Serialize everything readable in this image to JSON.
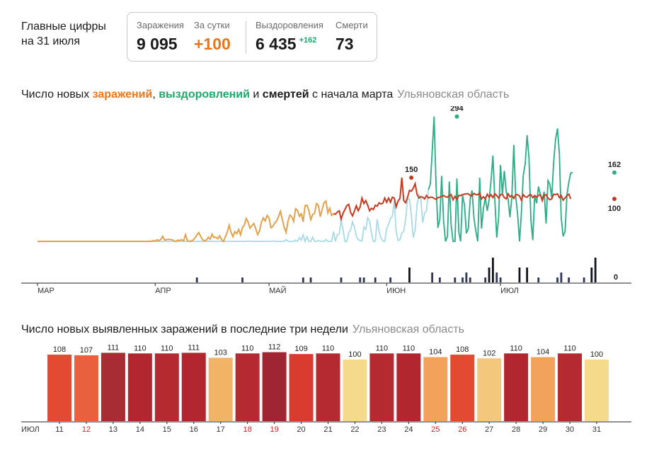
{
  "headline": {
    "line1": "Главные цифры",
    "line2": "на 31 июля"
  },
  "stats": {
    "infections": {
      "label": "Заражения",
      "value": "9 095"
    },
    "daily": {
      "label": "За сутки",
      "value": "+100"
    },
    "recovered": {
      "label": "Выздоровления",
      "value": "6 435",
      "delta": "+162"
    },
    "deaths": {
      "label": "Смерти",
      "value": "73"
    }
  },
  "colors": {
    "infections": "#c8391e",
    "infections_early": "#e2a14a",
    "recovered": "#2eae86",
    "recovered_light": "#a6dbe6",
    "deaths": "#2f3552",
    "deaths_peak": "#11131f"
  },
  "chart1": {
    "title_parts": {
      "t1": "Число новых ",
      "infections": "заражений",
      "t2": ", ",
      "recovered": "выздоровлений",
      "t3": " и ",
      "deaths": "смертей",
      "t4": " с начала марта"
    },
    "region": "Ульяновская область",
    "months": [
      "МАР",
      "АПР",
      "МАЙ",
      "ИЮН",
      "ИЮЛ"
    ],
    "labels": {
      "infections_peak": "150",
      "recovered_peak": "294",
      "recovered_last": "162",
      "infections_last": "100",
      "deaths_last": "0"
    }
  },
  "chart2": {
    "title": "Число новых выявленных заражений в последние три недели",
    "region": "Ульяновская область",
    "month_label": "ИЮЛ"
  },
  "chart_data": [
    {
      "type": "line",
      "title": "Число новых заражений, выздоровлений и смертей с начала марта",
      "x_range": [
        "01.03",
        "31.07"
      ],
      "series": [
        {
          "name": "заражения",
          "step": 2,
          "values": [
            0,
            0,
            0,
            0,
            0,
            0,
            0,
            0,
            0,
            0,
            0,
            0,
            0,
            0,
            0,
            0,
            0,
            0,
            0,
            0,
            0,
            0,
            0,
            0,
            0,
            0,
            0,
            0,
            0,
            0,
            0,
            0,
            0,
            0,
            0,
            0,
            0,
            0,
            0,
            0,
            0,
            0,
            0,
            0,
            0,
            0,
            0,
            0,
            0,
            0,
            0,
            0,
            0,
            0,
            0,
            0,
            0,
            0,
            0,
            0,
            0,
            2,
            0,
            4,
            1,
            5,
            12,
            3,
            4,
            5,
            4,
            4,
            1,
            0,
            3,
            2,
            4,
            1,
            16,
            2,
            0,
            1,
            3,
            8,
            15,
            21,
            11,
            4,
            1,
            3,
            10,
            5,
            17,
            9,
            10,
            6,
            13,
            4,
            0,
            11,
            22,
            38,
            21,
            11,
            23,
            18,
            28,
            15,
            33,
            38,
            54,
            45,
            31,
            37,
            42,
            30,
            16,
            25,
            45,
            55,
            48,
            61,
            55,
            32,
            35,
            43,
            48,
            58,
            71,
            52,
            33,
            21,
            48,
            62,
            58,
            47,
            77,
            73,
            59,
            65,
            46,
            84,
            85,
            72,
            51,
            63,
            66,
            89,
            85,
            58,
            75,
            91,
            95,
            67,
            78,
            61,
            65,
            64,
            69,
            72,
            52,
            66,
            75,
            84,
            87,
            68,
            60,
            71,
            84,
            72,
            81,
            102,
            89,
            96,
            85,
            72,
            78,
            75,
            85,
            83,
            91,
            88,
            90,
            102,
            92,
            102,
            92,
            104,
            102,
            81,
            95,
            101,
            150,
            96,
            91,
            104,
            120,
            118,
            125,
            136,
            111,
            102,
            105,
            104,
            100,
            108,
            102,
            104,
            104,
            101,
            99,
            103,
            104,
            106,
            108,
            105,
            104,
            108,
            110,
            98,
            106,
            99,
            108,
            108,
            110,
            111,
            112,
            112,
            108,
            107,
            113,
            110,
            110,
            114,
            100,
            105,
            100,
            111,
            104,
            110,
            103,
            112,
            108,
            102,
            110,
            111,
            103,
            100,
            112,
            105,
            108,
            101,
            110,
            110,
            107,
            97,
            110,
            105,
            104,
            109,
            110,
            103,
            108,
            104,
            108,
            110,
            96,
            108,
            110,
            102,
            98,
            100,
            111,
            110,
            112,
            103,
            108,
            97,
            102,
            108,
            111,
            100
          ]
        },
        {
          "name": "выздоровления",
          "step": 2,
          "values": [
            0,
            0,
            0,
            0,
            0,
            0,
            0,
            0,
            0,
            0,
            0,
            0,
            0,
            0,
            0,
            0,
            0,
            0,
            0,
            0,
            0,
            0,
            0,
            0,
            0,
            0,
            0,
            0,
            0,
            0,
            0,
            0,
            0,
            0,
            0,
            0,
            0,
            0,
            0,
            0,
            0,
            0,
            0,
            0,
            0,
            0,
            0,
            0,
            0,
            0,
            0,
            0,
            0,
            0,
            0,
            0,
            0,
            0,
            0,
            0,
            0,
            0,
            0,
            0,
            0,
            0,
            0,
            0,
            0,
            0,
            0,
            0,
            0,
            0,
            0,
            0,
            0,
            0,
            0,
            0,
            0,
            0,
            0,
            0,
            0,
            0,
            0,
            0,
            0,
            0,
            0,
            0,
            0,
            0,
            0,
            0,
            0,
            0,
            0,
            0,
            0,
            0,
            0,
            0,
            0,
            0,
            0,
            0,
            0,
            0,
            0,
            1,
            0,
            0,
            0,
            0,
            0,
            0,
            0,
            0,
            0,
            0,
            0,
            0,
            1,
            0,
            0,
            0,
            0,
            0,
            0,
            4,
            0,
            0,
            0,
            0,
            3,
            0,
            9,
            3,
            15,
            0,
            11,
            0,
            0,
            10,
            0,
            0,
            2,
            0,
            0,
            0,
            4,
            0,
            0,
            0,
            23,
            0,
            16,
            17,
            50,
            28,
            0,
            0,
            21,
            27,
            46,
            34,
            12,
            4,
            2,
            1,
            34,
            28,
            56,
            48,
            19,
            0,
            0,
            52,
            24,
            8,
            1,
            0,
            30,
            40,
            54,
            59,
            95,
            24,
            2,
            4,
            20,
            23,
            52,
            101,
            99,
            62,
            9,
            26,
            87,
            110,
            100,
            44,
            67,
            72,
            122,
            135,
            211,
            294,
            135,
            32,
            52,
            154,
            49,
            0,
            11,
            141,
            38,
            0,
            0,
            148,
            22,
            0,
            108,
            86,
            19,
            30,
            99,
            120,
            55,
            24,
            0,
            150,
            30,
            78,
            103,
            72,
            98,
            142,
            202,
            98,
            9,
            57,
            180,
            111,
            166,
            117,
            99,
            57,
            106,
            227,
            106,
            64,
            0,
            66,
            155,
            183,
            250,
            196,
            52,
            3,
            108,
            90,
            129,
            110,
            99,
            117,
            42,
            143,
            135,
            103,
            186,
            240,
            266,
            206,
            56,
            12,
            23,
            110,
            140,
            161,
            162
          ]
        },
        {
          "name": "смерти",
          "step": 2,
          "values": [
            0,
            0,
            0,
            0,
            0,
            0,
            0,
            0,
            0,
            0,
            0,
            0,
            0,
            0,
            0,
            0,
            0,
            0,
            0,
            0,
            0,
            0,
            0,
            0,
            0,
            0,
            0,
            0,
            0,
            0,
            0,
            0,
            0,
            0,
            0,
            0,
            0,
            0,
            0,
            0,
            0,
            0,
            0,
            0,
            0,
            0,
            0,
            0,
            0,
            0,
            0,
            0,
            0,
            0,
            0,
            0,
            0,
            0,
            0,
            0,
            0,
            0,
            0,
            0,
            0,
            0,
            0,
            0,
            0,
            0,
            0,
            0,
            0,
            0,
            0,
            0,
            0,
            0,
            0,
            0,
            0,
            0,
            0,
            0,
            0,
            0,
            0,
            0,
            0,
            0,
            0,
            0,
            0,
            0,
            0,
            0,
            0,
            0,
            0,
            0,
            0,
            0,
            0,
            0,
            0,
            0,
            0,
            0,
            0,
            0,
            0,
            0,
            0,
            0,
            0,
            0,
            0,
            0,
            0,
            0,
            0,
            0,
            0,
            0,
            0,
            0,
            0,
            0,
            0,
            0,
            0,
            0,
            0,
            0,
            0,
            0,
            0,
            0,
            0,
            0,
            0,
            0,
            0,
            0,
            0,
            0,
            0,
            0,
            0,
            0,
            0,
            0,
            0,
            0,
            0,
            0,
            0,
            0,
            0,
            0,
            0,
            0,
            0,
            0,
            0,
            0,
            0,
            0,
            0,
            0,
            0,
            0,
            0,
            0,
            0,
            0,
            0,
            0,
            0,
            0,
            0,
            0,
            0,
            0,
            0,
            0,
            0,
            0,
            0,
            0,
            0,
            0,
            0,
            0,
            0,
            0,
            0,
            0,
            0,
            0,
            0,
            0,
            0,
            0,
            0,
            0,
            0,
            0,
            0,
            0,
            0,
            0,
            0,
            0,
            0,
            0,
            0,
            0,
            0,
            0,
            0,
            0,
            0,
            0,
            0,
            0,
            0,
            0,
            0,
            0,
            0,
            0,
            0,
            0,
            0,
            0,
            0,
            0,
            0,
            0,
            0,
            0,
            0,
            0,
            0,
            0,
            0,
            0,
            0,
            0,
            0,
            0,
            0,
            0,
            0,
            0,
            0,
            0,
            0,
            0,
            0,
            0,
            0,
            0,
            0,
            0,
            0,
            0,
            0,
            0,
            0,
            0,
            0,
            0,
            0,
            0,
            0,
            0,
            0,
            0,
            0,
            0,
            0,
            0,
            0,
            0,
            0,
            0,
            0,
            0,
            0,
            0,
            0,
            0,
            0
          ]
        }
      ],
      "deaths_daily": {
        "days": [
          42,
          54,
          70,
          72,
          80,
          85,
          86,
          89,
          93,
          98,
          104,
          106,
          110,
          112,
          113,
          114,
          118,
          119,
          120,
          121,
          122,
          127,
          129,
          132,
          137,
          138,
          140,
          144,
          146,
          147,
          150
        ],
        "values": [
          1,
          1,
          1,
          1,
          1,
          1,
          1,
          1,
          1,
          3,
          2,
          1,
          1,
          1,
          2,
          1,
          1,
          3,
          5,
          2,
          1,
          3,
          3,
          1,
          1,
          2,
          1,
          1,
          3,
          5,
          0
        ]
      }
    },
    {
      "type": "bar",
      "title": "Число новых выявленных заражений в последние три недели",
      "categories": [
        "11",
        "12",
        "13",
        "14",
        "15",
        "16",
        "17",
        "18",
        "19",
        "20",
        "21",
        "22",
        "23",
        "24",
        "25",
        "26",
        "27",
        "28",
        "29",
        "30",
        "31"
      ],
      "values": [
        108,
        107,
        111,
        110,
        110,
        111,
        103,
        110,
        112,
        109,
        110,
        100,
        110,
        110,
        104,
        108,
        102,
        110,
        104,
        110,
        100
      ],
      "weekend": [
        false,
        true,
        false,
        false,
        false,
        false,
        false,
        true,
        true,
        false,
        false,
        false,
        false,
        false,
        true,
        true,
        false,
        false,
        false,
        false,
        false
      ],
      "colors": [
        "#e24a31",
        "#e9603c",
        "#a72c33",
        "#b2272f",
        "#b52a30",
        "#b2272f",
        "#f1b466",
        "#b52a30",
        "#9f2532",
        "#d93b2e",
        "#b52a30",
        "#f5da8c",
        "#b52a30",
        "#b2272f",
        "#f2a25a",
        "#e24a31",
        "#f3c77c",
        "#b2272f",
        "#f2a25a",
        "#b52a30",
        "#f5da8c"
      ]
    }
  ]
}
